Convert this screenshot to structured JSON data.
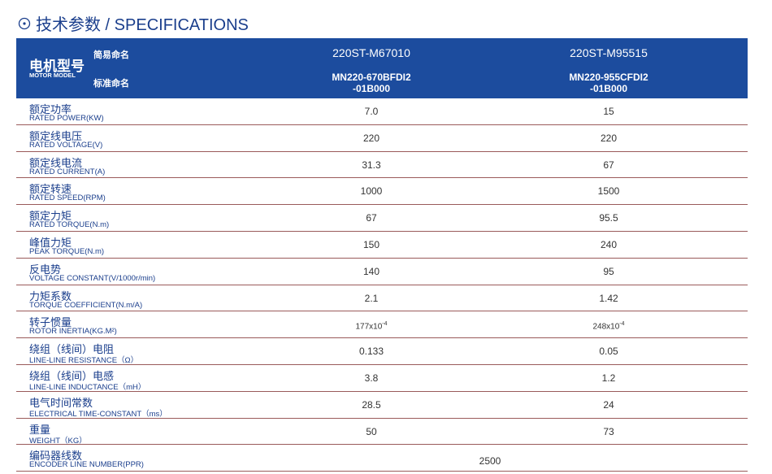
{
  "header": {
    "title": "技术参数 / SPECIFICATIONS",
    "label_cn": "电机型号",
    "label_en": "MOTOR MODEL",
    "short_name": "简易命名",
    "standard_name": "标准命名",
    "models": [
      {
        "short": "220ST-M67010",
        "standard": [
          "MN220-670BFDI2",
          "-01B000"
        ]
      },
      {
        "short": "220ST-M95515",
        "standard": [
          "MN220-955CFDI2",
          "-01B000"
        ]
      }
    ]
  },
  "table": {
    "rows": [
      {
        "cn": "额定功率",
        "en": "RATED POWER(KW)",
        "values": [
          "7.0",
          "15"
        ]
      },
      {
        "cn": "额定线电压",
        "en": "RATED VOLTAGE(V)",
        "values": [
          "220",
          "220"
        ]
      },
      {
        "cn": "额定线电流",
        "en": "RATED CURRENT(A)",
        "values": [
          "31.3",
          "67"
        ]
      },
      {
        "cn": "额定转速",
        "en": "RATED SPEED(RPM)",
        "values": [
          "1000",
          "1500"
        ]
      },
      {
        "cn": "额定力矩",
        "en": "RATED TORQUE(N.m)",
        "values": [
          "67",
          "95.5"
        ]
      },
      {
        "cn": "峰值力矩",
        "en": "PEAK TORQUE(N.m)",
        "values": [
          "150",
          "240"
        ]
      },
      {
        "cn": "反电势",
        "en": "VOLTAGE CONSTANT(V/1000r/min)",
        "values": [
          "140",
          "95"
        ]
      },
      {
        "cn": "力矩系数",
        "en": "TORQUE COEFFICIENT(N.m/A)",
        "values": [
          "2.1",
          "1.42"
        ]
      },
      {
        "cn": "转子惯量",
        "en": "ROTOR INERTIA(KG.M²)",
        "values": [
          {
            "base": "177x10",
            "exp": "-4"
          },
          {
            "base": "248x10",
            "exp": "-4"
          }
        ]
      },
      {
        "cn": "绕组（线间）电阻",
        "en": "LINE-LINE RESISTANCE（Ω）",
        "values": [
          "0.133",
          "0.05"
        ]
      },
      {
        "cn": "绕组（线间）电感",
        "en": "LINE-LINE INDUCTANCE（mH）",
        "values": [
          "3.8",
          "1.2"
        ]
      },
      {
        "cn": "电气时间常数",
        "en": "ELECTRICAL TIME-CONSTANT（ms）",
        "values": [
          "28.5",
          "24"
        ]
      },
      {
        "cn": "重量",
        "en": "WEIGHT（KG）",
        "values": [
          "50",
          "73"
        ]
      },
      {
        "cn": "编码器线数",
        "en": "ENCODER LINE NUMBER(PPR)",
        "values": [
          "2500"
        ]
      }
    ]
  }
}
